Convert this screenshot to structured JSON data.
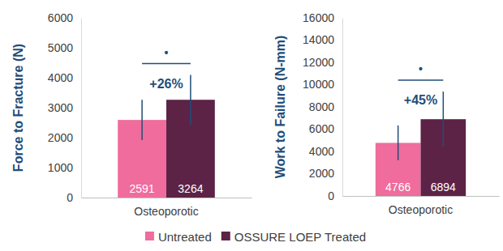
{
  "chart_data": [
    {
      "type": "bar",
      "y_label": "Force to Fracture (N)",
      "categories": [
        "Osteoporotic"
      ],
      "series": [
        {
          "name": "Untreated",
          "color": "#ef6c9c",
          "values": [
            2591
          ],
          "errors": [
            670
          ]
        },
        {
          "name": "OSSURE LOEP Treated",
          "color": "#5c2346",
          "values": [
            3264
          ],
          "errors": [
            830
          ]
        }
      ],
      "annotations": [
        "•",
        "+26%"
      ],
      "ylim": [
        0,
        6000
      ],
      "yticks": [
        0,
        1000,
        2000,
        3000,
        4000,
        5000,
        6000
      ],
      "grid": false,
      "data_labels": true,
      "legend": "bottom"
    },
    {
      "type": "bar",
      "y_label": "Work to Failure (N-mm)",
      "categories": [
        "Osteoporotic"
      ],
      "series": [
        {
          "color": "#ef6c9c",
          "values": [
            4766
          ],
          "errors": [
            1560
          ]
        },
        {
          "color": "#5c2346",
          "values": [
            6894
          ],
          "errors": [
            2480
          ]
        }
      ],
      "annotations": [
        "•",
        "+45%"
      ],
      "ylim": [
        0,
        16000
      ],
      "yticks": [
        0,
        2000,
        4000,
        6000,
        8000,
        10000,
        12000,
        14000,
        16000
      ],
      "grid": false,
      "data_labels": true
    }
  ]
}
